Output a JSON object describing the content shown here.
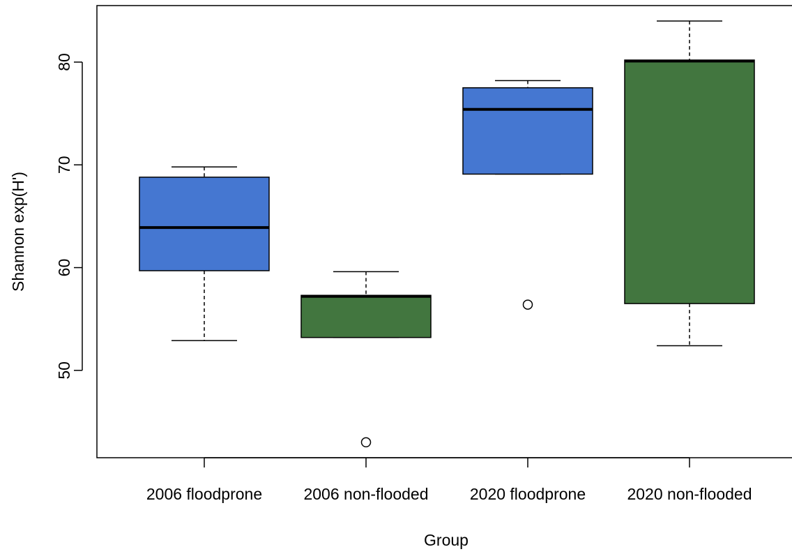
{
  "chart_data": {
    "type": "boxplot",
    "title": "",
    "xlabel": "Group",
    "ylabel": "Shannon exp(H')",
    "ylim": [
      41.5,
      85.5
    ],
    "yticks": [
      50,
      60,
      70,
      80
    ],
    "grid": false,
    "colors": {
      "floodprone": "#4577d1",
      "non-flooded": "#42763f"
    },
    "groups": [
      {
        "label": "2006 floodprone",
        "color": "#4577d1",
        "whisker_low": 52.9,
        "q1": 59.7,
        "median": 63.9,
        "q3": 68.8,
        "whisker_high": 69.8,
        "outliers": []
      },
      {
        "label": "2006 non-flooded",
        "color": "#42763f",
        "whisker_low": 53.2,
        "q1": 53.2,
        "median": 57.2,
        "q3": 57.3,
        "whisker_high": 59.6,
        "outliers": [
          43.0
        ]
      },
      {
        "label": "2020 floodprone",
        "color": "#4577d1",
        "whisker_low": 69.1,
        "q1": 69.1,
        "median": 75.4,
        "q3": 77.5,
        "whisker_high": 78.2,
        "outliers": [
          56.4
        ]
      },
      {
        "label": "2020 non-flooded",
        "color": "#42763f",
        "whisker_low": 52.4,
        "q1": 56.5,
        "median": 80.1,
        "q3": 80.2,
        "whisker_high": 84.0,
        "outliers": []
      }
    ]
  }
}
